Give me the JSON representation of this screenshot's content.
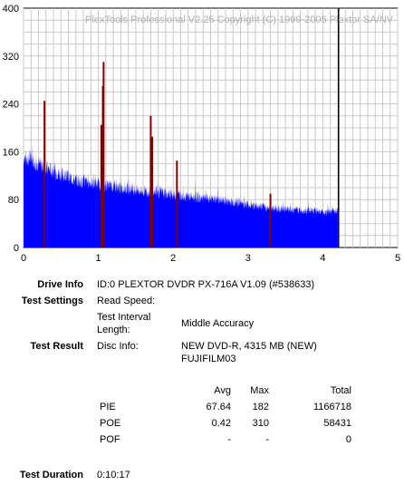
{
  "chart_data": {
    "type": "bar",
    "title": "PlexTools Professional V2.25 Copyright (C) 1999-2005 Plextor SA/NV",
    "xlabel": "",
    "ylabel": "",
    "xlim": [
      0,
      5
    ],
    "ylim": [
      0,
      400
    ],
    "x_ticks": [
      "0",
      "1",
      "2",
      "3",
      "4",
      "5"
    ],
    "y_ticks": [
      "0",
      "80",
      "160",
      "240",
      "320",
      "400"
    ],
    "grid": true,
    "series": [
      {
        "color": "#0000ff",
        "x": [
          0.0,
          0.1,
          0.2,
          0.3,
          0.4,
          0.5,
          0.6,
          0.7,
          0.8,
          0.9,
          1.0,
          1.2,
          1.4,
          1.6,
          1.8,
          2.0,
          2.2,
          2.4,
          2.6,
          2.8,
          3.0,
          3.2,
          3.4,
          3.6,
          3.8,
          4.0,
          4.1,
          4.2
        ],
        "values": [
          150,
          148,
          140,
          132,
          128,
          122,
          118,
          112,
          110,
          108,
          106,
          102,
          98,
          94,
          92,
          88,
          85,
          82,
          80,
          76,
          72,
          68,
          65,
          63,
          62,
          60,
          58,
          64
        ]
      },
      {
        "color": "#800000",
        "x": [
          0.28,
          1.04,
          1.06,
          1.07,
          1.7,
          1.72,
          2.05,
          3.3
        ],
        "values": [
          245,
          205,
          270,
          310,
          220,
          185,
          145,
          90
        ]
      },
      {
        "color": "#000000",
        "x": [
          4.21
        ],
        "values": [
          400
        ]
      }
    ]
  },
  "info": {
    "drive_info_label": "Drive Info",
    "drive_info_value": "ID:0 PLEXTOR DVDR PX-716A V1.09 (#538633)",
    "test_settings_label": "Test Settings",
    "read_speed_label": "Read Speed:",
    "test_interval_label_1": "Test Interval",
    "test_interval_label_2": "Length:",
    "test_interval_value": "Middle Accuracy",
    "test_result_label": "Test Result",
    "disc_info_label": "Disc Info:",
    "disc_info_value_1": "NEW DVD-R, 4315 MB (NEW)",
    "disc_info_value_2": "FUJIFILM03",
    "test_duration_label": "Test Duration",
    "test_duration_value": "0:10:17"
  },
  "stats": {
    "headers": {
      "avg": "Avg",
      "max": "Max",
      "total": "Total"
    },
    "rows": [
      {
        "name": "PIE",
        "avg": "67.64",
        "max": "182",
        "total": "1166718"
      },
      {
        "name": "POE",
        "avg": "0.42",
        "max": "310",
        "total": "58431"
      },
      {
        "name": "POF",
        "avg": "-",
        "max": "-",
        "total": "0"
      }
    ]
  }
}
